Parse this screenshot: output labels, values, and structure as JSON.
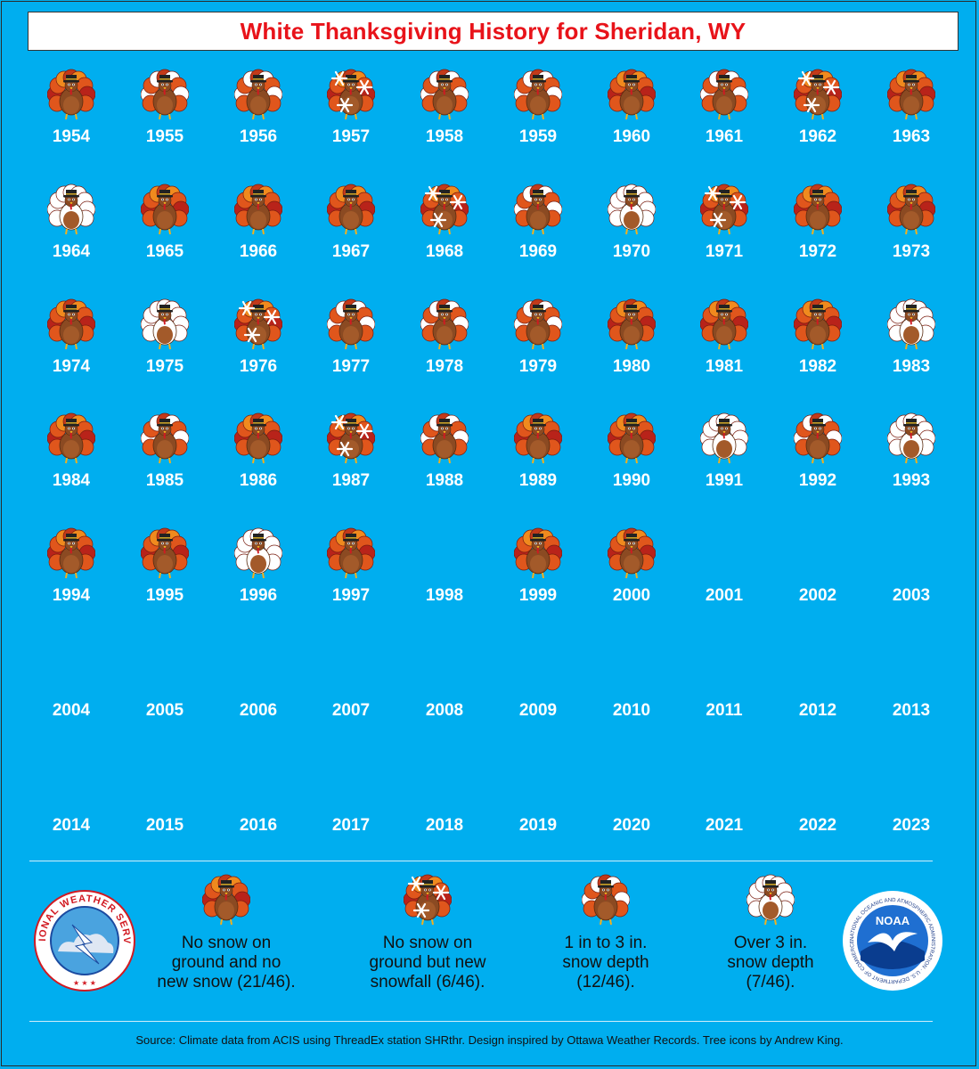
{
  "title": "White Thanksgiving History for Sheridan, WY",
  "colors": {
    "background": "#00aeef",
    "title_text": "#e8131a",
    "year_text": "#ffffff"
  },
  "chart_data": {
    "type": "table",
    "title": "White Thanksgiving History for Sheridan, WY",
    "categories": {
      "none": "No snow on ground and no new snow (21/46).",
      "snowfall": "No snow on ground but new snowfall (6/46).",
      "depth_1_3": "1 in to 3 in. snow depth (12/46).",
      "depth_over_3": "Over 3 in. snow depth (7/46)."
    },
    "years": [
      {
        "year": 1954,
        "category": "none"
      },
      {
        "year": 1955,
        "category": "depth_1_3"
      },
      {
        "year": 1956,
        "category": "depth_1_3"
      },
      {
        "year": 1957,
        "category": "snowfall"
      },
      {
        "year": 1958,
        "category": "depth_1_3"
      },
      {
        "year": 1959,
        "category": "depth_1_3"
      },
      {
        "year": 1960,
        "category": "none"
      },
      {
        "year": 1961,
        "category": "depth_1_3"
      },
      {
        "year": 1962,
        "category": "snowfall"
      },
      {
        "year": 1963,
        "category": "none"
      },
      {
        "year": 1964,
        "category": "depth_over_3"
      },
      {
        "year": 1965,
        "category": "none"
      },
      {
        "year": 1966,
        "category": "none"
      },
      {
        "year": 1967,
        "category": "none"
      },
      {
        "year": 1968,
        "category": "snowfall"
      },
      {
        "year": 1969,
        "category": "depth_1_3"
      },
      {
        "year": 1970,
        "category": "depth_over_3"
      },
      {
        "year": 1971,
        "category": "snowfall"
      },
      {
        "year": 1972,
        "category": "none"
      },
      {
        "year": 1973,
        "category": "none"
      },
      {
        "year": 1974,
        "category": "none"
      },
      {
        "year": 1975,
        "category": "depth_over_3"
      },
      {
        "year": 1976,
        "category": "snowfall"
      },
      {
        "year": 1977,
        "category": "depth_1_3"
      },
      {
        "year": 1978,
        "category": "depth_1_3"
      },
      {
        "year": 1979,
        "category": "depth_1_3"
      },
      {
        "year": 1980,
        "category": "none"
      },
      {
        "year": 1981,
        "category": "none"
      },
      {
        "year": 1982,
        "category": "none"
      },
      {
        "year": 1983,
        "category": "depth_over_3"
      },
      {
        "year": 1984,
        "category": "none"
      },
      {
        "year": 1985,
        "category": "depth_1_3"
      },
      {
        "year": 1986,
        "category": "none"
      },
      {
        "year": 1987,
        "category": "snowfall"
      },
      {
        "year": 1988,
        "category": "depth_1_3"
      },
      {
        "year": 1989,
        "category": "none"
      },
      {
        "year": 1990,
        "category": "none"
      },
      {
        "year": 1991,
        "category": "depth_over_3"
      },
      {
        "year": 1992,
        "category": "depth_1_3"
      },
      {
        "year": 1993,
        "category": "depth_over_3"
      },
      {
        "year": 1994,
        "category": "none"
      },
      {
        "year": 1995,
        "category": "none"
      },
      {
        "year": 1996,
        "category": "depth_over_3"
      },
      {
        "year": 1997,
        "category": "none"
      },
      {
        "year": 1998,
        "category": "missing"
      },
      {
        "year": 1999,
        "category": "none"
      },
      {
        "year": 2000,
        "category": "none"
      },
      {
        "year": 2001,
        "category": "missing"
      },
      {
        "year": 2002,
        "category": "missing"
      },
      {
        "year": 2003,
        "category": "missing"
      },
      {
        "year": 2004,
        "category": "missing"
      },
      {
        "year": 2005,
        "category": "missing"
      },
      {
        "year": 2006,
        "category": "missing"
      },
      {
        "year": 2007,
        "category": "missing"
      },
      {
        "year": 2008,
        "category": "missing"
      },
      {
        "year": 2009,
        "category": "missing"
      },
      {
        "year": 2010,
        "category": "missing"
      },
      {
        "year": 2011,
        "category": "missing"
      },
      {
        "year": 2012,
        "category": "missing"
      },
      {
        "year": 2013,
        "category": "missing"
      },
      {
        "year": 2014,
        "category": "missing"
      },
      {
        "year": 2015,
        "category": "missing"
      },
      {
        "year": 2016,
        "category": "missing"
      },
      {
        "year": 2017,
        "category": "missing"
      },
      {
        "year": 2018,
        "category": "missing"
      },
      {
        "year": 2019,
        "category": "missing"
      },
      {
        "year": 2020,
        "category": "missing"
      },
      {
        "year": 2021,
        "category": "missing"
      },
      {
        "year": 2022,
        "category": "missing"
      },
      {
        "year": 2023,
        "category": "missing"
      }
    ]
  },
  "legend": [
    {
      "key": "none",
      "text": "No snow on\nground and no\nnew snow (21/46)."
    },
    {
      "key": "snowfall",
      "text": "No snow on\nground but new\nsnowfall (6/46)."
    },
    {
      "key": "depth_1_3",
      "text": "1 in to 3 in.\nsnow depth\n(12/46)."
    },
    {
      "key": "depth_over_3",
      "text": "Over 3 in.\nsnow depth\n(7/46)."
    }
  ],
  "logos": {
    "nws": {
      "text": "NATIONAL WEATHER SERVICE"
    },
    "noaa": {
      "center_text": "NOAA",
      "ring_text": "NATIONAL OCEANIC AND ATMOSPHERIC ADMINISTRATION · U.S. DEPARTMENT OF COMMERCE"
    }
  },
  "source": "Source: Climate data from ACIS using ThreadEx station SHRthr. Design inspired by Ottawa Weather Records. Tree icons by Andrew King."
}
